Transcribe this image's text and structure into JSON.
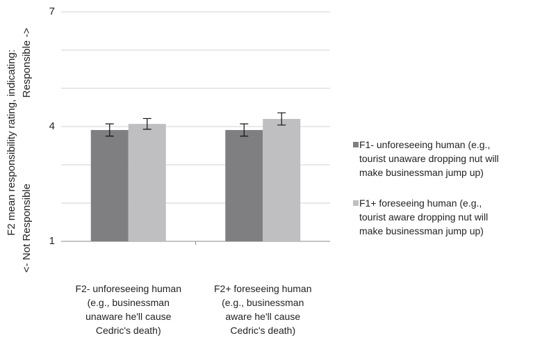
{
  "chart_data": {
    "type": "bar",
    "y_label": "F2 mean responsibility rating, indicating:",
    "annotations": [
      "<- Not Responsible",
      "Responsible ->"
    ],
    "categories": [
      "F2-  unforeseeing human\n(e.g., businessman\nunaware he'll cause\nCedric's death)",
      "F2+  foreseeing human\n(e.g., businessman\naware he'll cause\nCedric's death)"
    ],
    "series": [
      {
        "name": "F1-  unforeseeing human (e.g.,\ntourist unaware dropping nut will\nmake businessman jump up)",
        "color": "#7f7f81",
        "values": [
          3.91,
          3.91
        ],
        "errors": [
          0.16,
          0.16
        ]
      },
      {
        "name": "F1+  foreseeing human (e.g.,\ntourist aware dropping nut will\nmake businessman jump up)",
        "color": "#bfbfc1",
        "values": [
          4.07,
          4.2
        ],
        "errors": [
          0.14,
          0.16
        ]
      }
    ],
    "ylim": [
      1,
      7
    ],
    "yticks": [
      1,
      4,
      7
    ],
    "yminor": [
      2,
      3,
      5,
      6
    ],
    "grid": true
  }
}
